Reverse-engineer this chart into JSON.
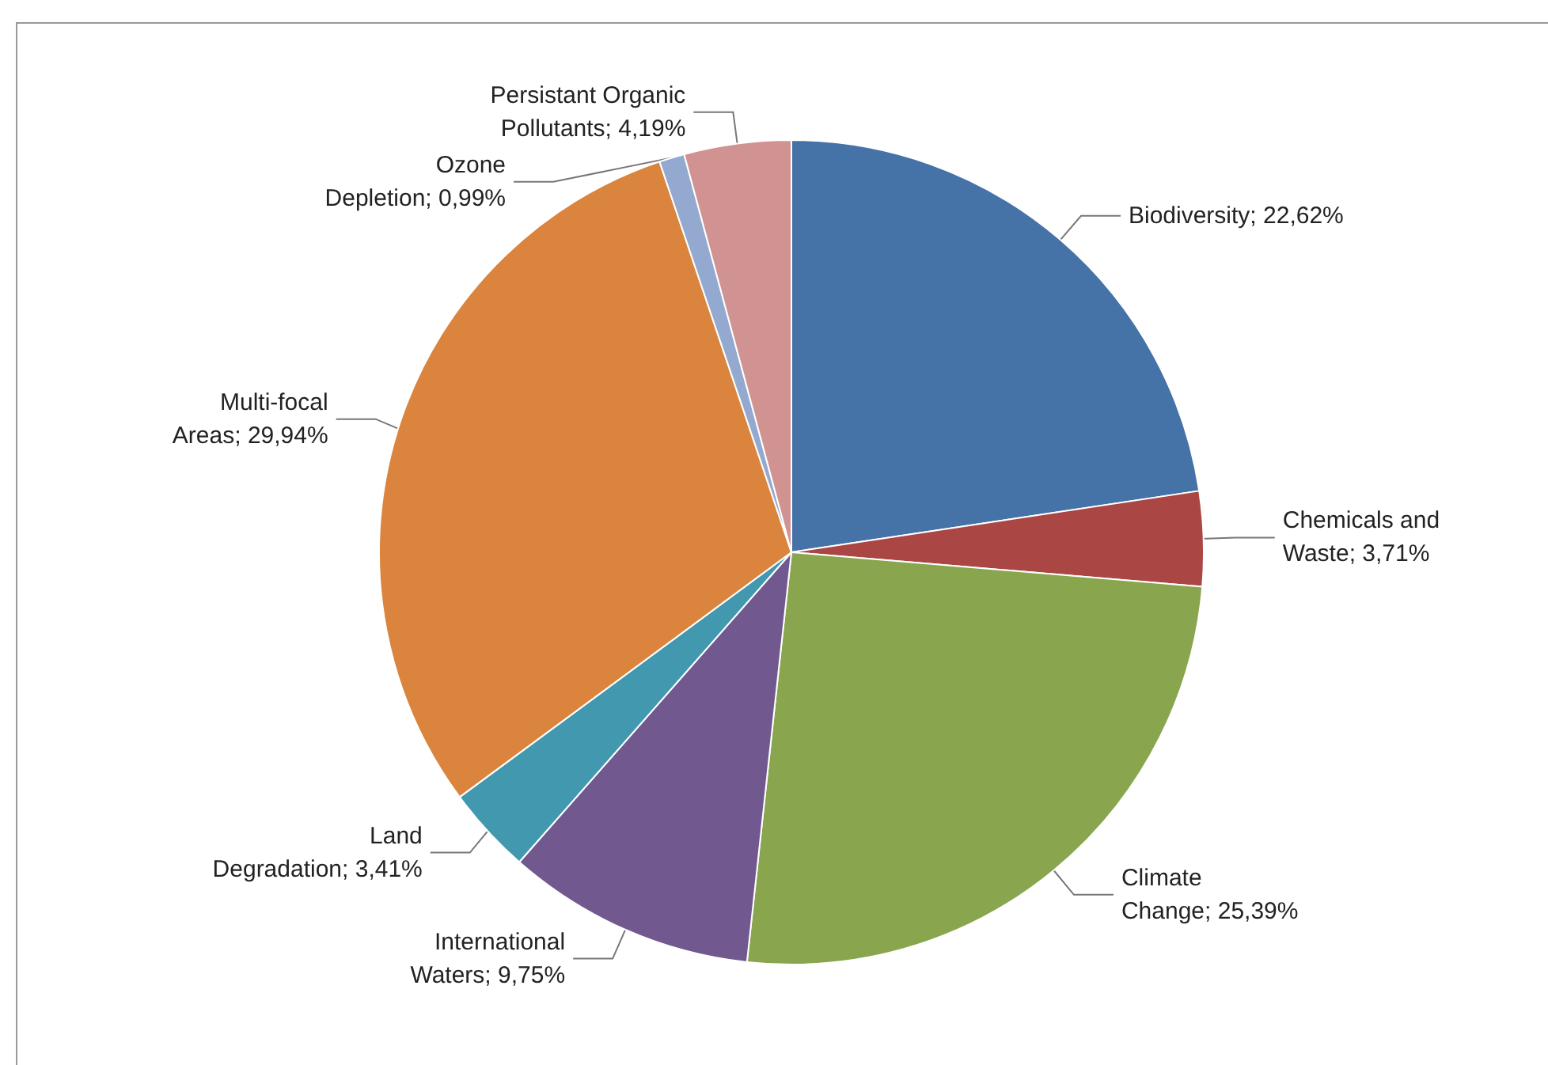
{
  "chart_data": {
    "type": "pie",
    "categories": [
      "Biodiversity",
      "Chemicals and Waste",
      "Climate Change",
      "International Waters",
      "Land Degradation",
      "Multi-focal Areas",
      "Ozone Depletion",
      "Persistant Organic Pollutants"
    ],
    "values": [
      22.62,
      3.71,
      25.39,
      9.75,
      3.41,
      29.94,
      0.99,
      4.19
    ],
    "value_labels": [
      "22,62%",
      "3,71%",
      "25,39%",
      "9,75%",
      "3,41%",
      "29,94%",
      "0,99%",
      "4,19%"
    ],
    "colors": [
      "#4572a7",
      "#aa4643",
      "#89a54e",
      "#71588f",
      "#4198af",
      "#db843d",
      "#93a9cf",
      "#d19392"
    ],
    "legend": false
  }
}
